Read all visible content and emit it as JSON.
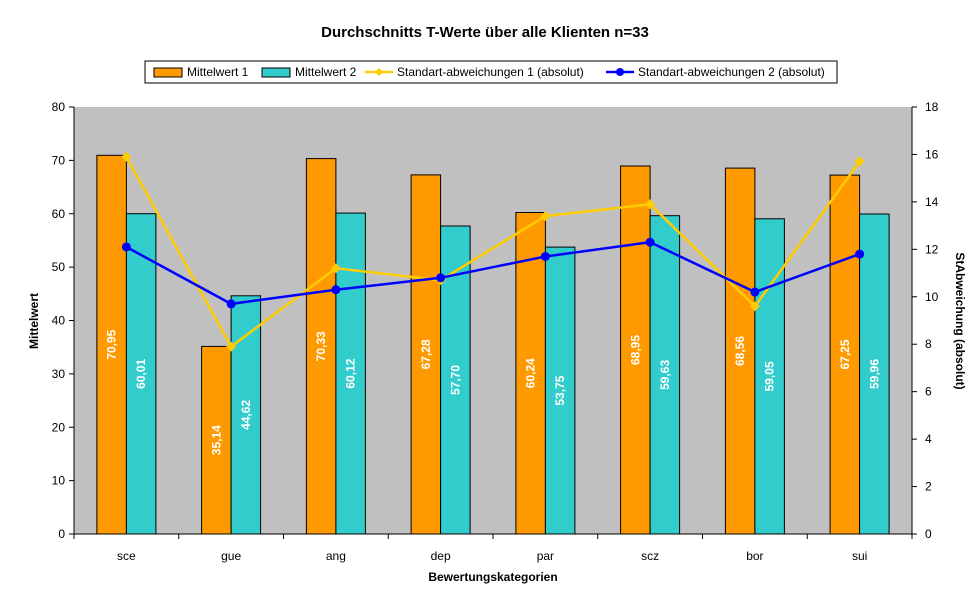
{
  "chart_data": {
    "type": "bar",
    "title": "Durchschnitts T-Werte über alle Klienten n=33",
    "xlabel": "Bewertungskategorien",
    "ylabel": "Mittelwert",
    "y2label": "StAbweichung (absolut)",
    "ylim": [
      0,
      80
    ],
    "y_ticks": [
      0,
      10,
      20,
      30,
      40,
      50,
      60,
      70,
      80
    ],
    "y2lim": [
      0,
      18
    ],
    "y2_ticks": [
      0,
      2,
      4,
      6,
      8,
      10,
      12,
      14,
      16,
      18
    ],
    "categories": [
      "sce",
      "gue",
      "ang",
      "dep",
      "par",
      "scz",
      "bor",
      "sui"
    ],
    "series": [
      {
        "name": "Mittelwert 1",
        "type": "bar",
        "axis": "left",
        "color": "#ff9900",
        "values": [
          70.95,
          35.14,
          70.33,
          67.28,
          60.24,
          68.95,
          68.56,
          67.25
        ],
        "labels": [
          "70,95",
          "35,14",
          "70,33",
          "67,28",
          "60,24",
          "68,95",
          "68,56",
          "67,25"
        ]
      },
      {
        "name": "Mittelwert 2",
        "type": "bar",
        "axis": "left",
        "color": "#33cccc",
        "values": [
          60.01,
          44.62,
          60.12,
          57.7,
          53.75,
          59.63,
          59.05,
          59.96
        ],
        "labels": [
          "60,01",
          "44,62",
          "60,12",
          "57,70",
          "53,75",
          "59,63",
          "59,05",
          "59,96"
        ]
      },
      {
        "name": "Standart-abweichungen 1 (absolut)",
        "type": "line",
        "axis": "right",
        "color": "#ffcc00",
        "marker": "diamond",
        "values": [
          15.9,
          7.9,
          11.2,
          10.7,
          13.4,
          13.9,
          9.6,
          15.7
        ]
      },
      {
        "name": "Standart-abweichungen 2 (absolut)",
        "type": "line",
        "axis": "right",
        "color": "#0000ff",
        "marker": "circle",
        "values": [
          12.1,
          9.7,
          10.3,
          10.8,
          11.7,
          12.3,
          10.2,
          11.8
        ]
      }
    ],
    "legend_position": "top",
    "plot_background": "#c0c0c0",
    "grid": false
  }
}
